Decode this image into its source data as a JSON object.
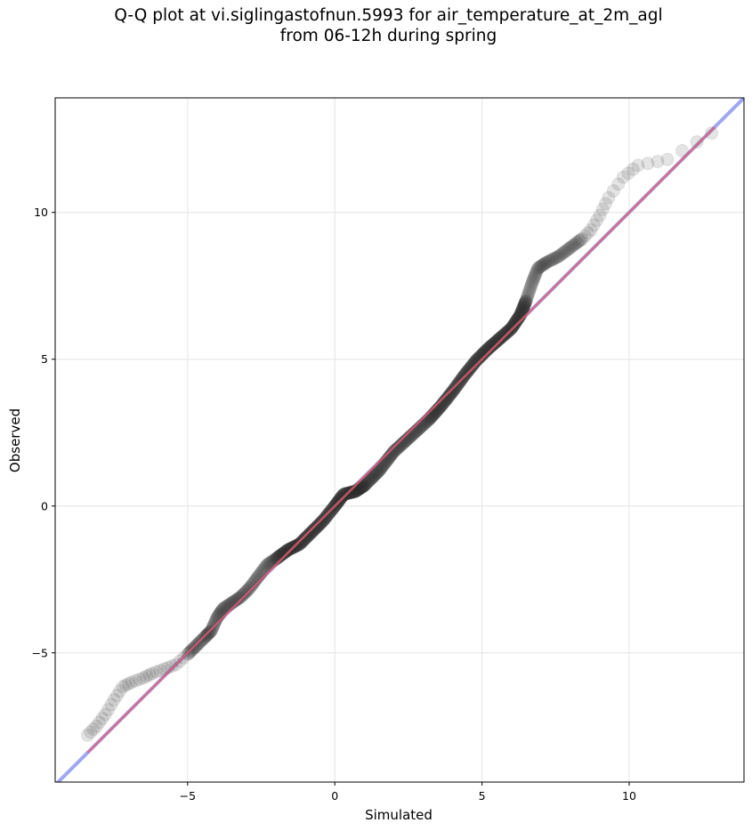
{
  "title_line1": "Q-Q plot at vi.siglingastofnun.5993 for air_temperature_at_2m_agl",
  "title_line2": "from 06-12h during spring",
  "colors": {
    "points": "#303030",
    "identity_line": "#8f98f0",
    "fit_line": "#e06070",
    "grid": "#e8e8e8"
  },
  "chart_data": {
    "type": "scatter",
    "title": "Q-Q plot at vi.siglingastofnun.5993 for air_temperature_at_2m_agl from 06-12h during spring",
    "xlabel": "Simulated",
    "ylabel": "Observed",
    "xlim": [
      -9.5,
      13.9
    ],
    "ylim": [
      -9.4,
      13.9
    ],
    "xticks": [
      -5,
      0,
      5,
      10
    ],
    "yticks": [
      -5,
      0,
      5,
      10
    ],
    "xtick_labels": [
      "−5",
      "0",
      "5",
      "10"
    ],
    "ytick_labels": [
      "−5",
      "0",
      "5",
      "10"
    ],
    "grid": true,
    "identity_line": {
      "from": [
        -9.5,
        -9.5
      ],
      "to": [
        13.9,
        13.9
      ]
    },
    "fit_line": {
      "from": [
        -8.4,
        -8.4
      ],
      "to": [
        12.9,
        12.9
      ]
    },
    "quantile_curve": [
      [
        -8.4,
        -7.8
      ],
      [
        -8.1,
        -7.5
      ],
      [
        -7.8,
        -7.1
      ],
      [
        -7.5,
        -6.6
      ],
      [
        -7.2,
        -6.15
      ],
      [
        -6.9,
        -6.0
      ],
      [
        -6.5,
        -5.85
      ],
      [
        -6.2,
        -5.7
      ],
      [
        -5.8,
        -5.55
      ],
      [
        -5.4,
        -5.4
      ],
      [
        -5.0,
        -5.05
      ],
      [
        -4.7,
        -4.75
      ],
      [
        -4.4,
        -4.45
      ],
      [
        -4.2,
        -4.25
      ],
      [
        -4.0,
        -3.8
      ],
      [
        -3.8,
        -3.5
      ],
      [
        -3.5,
        -3.3
      ],
      [
        -3.2,
        -3.1
      ],
      [
        -2.9,
        -2.8
      ],
      [
        -2.6,
        -2.4
      ],
      [
        -2.3,
        -2.0
      ],
      [
        -2.0,
        -1.8
      ],
      [
        -1.6,
        -1.5
      ],
      [
        -1.2,
        -1.3
      ],
      [
        -0.8,
        -0.9
      ],
      [
        -0.4,
        -0.5
      ],
      [
        0.0,
        0.0
      ],
      [
        0.3,
        0.4
      ],
      [
        0.7,
        0.5
      ],
      [
        1.0,
        0.7
      ],
      [
        1.5,
        1.2
      ],
      [
        2.0,
        1.85
      ],
      [
        2.6,
        2.4
      ],
      [
        3.2,
        2.95
      ],
      [
        3.6,
        3.4
      ],
      [
        4.0,
        3.9
      ],
      [
        4.4,
        4.45
      ],
      [
        4.8,
        4.95
      ],
      [
        5.2,
        5.35
      ],
      [
        5.6,
        5.7
      ],
      [
        6.0,
        6.05
      ],
      [
        6.3,
        6.5
      ],
      [
        6.5,
        7.0
      ],
      [
        6.7,
        7.6
      ],
      [
        6.9,
        8.1
      ],
      [
        7.2,
        8.3
      ],
      [
        7.6,
        8.5
      ],
      [
        8.0,
        8.8
      ],
      [
        8.4,
        9.1
      ],
      [
        8.7,
        9.4
      ],
      [
        9.0,
        9.9
      ],
      [
        9.3,
        10.5
      ],
      [
        9.8,
        11.2
      ],
      [
        10.3,
        11.6
      ],
      [
        11.3,
        11.8
      ],
      [
        12.8,
        12.7
      ]
    ]
  }
}
